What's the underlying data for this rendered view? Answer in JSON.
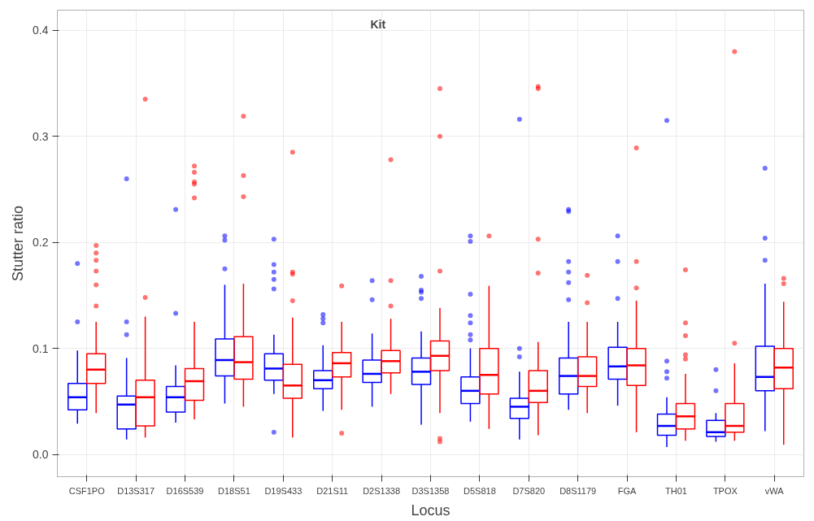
{
  "chart_data": {
    "type": "box",
    "xlabel": "Locus",
    "ylabel": "Stutter ratio",
    "legend_title": "Kit",
    "grid": true,
    "marker": "circle",
    "categories": [
      "CSF1PO",
      "D13S317",
      "D16S539",
      "D18S51",
      "D19S433",
      "D21S11",
      "D2S1338",
      "D3S1358",
      "D5S818",
      "D7S820",
      "D8S1179",
      "FGA",
      "TH01",
      "TPOX",
      "vWA"
    ],
    "ylim": [
      -0.021,
      0.419
    ],
    "yticks": [
      {
        "value": 0,
        "label": "0.0"
      },
      {
        "value": 0.1,
        "label": "0.1"
      },
      {
        "value": 0.2,
        "label": "0.2"
      },
      {
        "value": 0.3,
        "label": "0.3"
      },
      {
        "value": 0.4,
        "label": "0.4"
      }
    ],
    "series": [
      {
        "color": "#0000ff",
        "boxes": [
          {
            "low": 0.029,
            "q1": 0.042,
            "median": 0.054,
            "q3": 0.067,
            "high": 0.098,
            "outliers": [
              0.18,
              0.125
            ]
          },
          {
            "low": 0.014,
            "q1": 0.024,
            "median": 0.047,
            "q3": 0.055,
            "high": 0.091,
            "outliers": [
              0.26,
              0.125,
              0.113
            ]
          },
          {
            "low": 0.03,
            "q1": 0.04,
            "median": 0.054,
            "q3": 0.064,
            "high": 0.084,
            "outliers": [
              0.231,
              0.133
            ]
          },
          {
            "low": 0.048,
            "q1": 0.074,
            "median": 0.089,
            "q3": 0.109,
            "high": 0.16,
            "outliers": [
              0.206,
              0.202,
              0.175
            ]
          },
          {
            "low": 0.057,
            "q1": 0.07,
            "median": 0.081,
            "q3": 0.095,
            "high": 0.113,
            "outliers": [
              0.203,
              0.179,
              0.172,
              0.165,
              0.156,
              0.021
            ]
          },
          {
            "low": 0.041,
            "q1": 0.062,
            "median": 0.07,
            "q3": 0.079,
            "high": 0.103,
            "outliers": [
              0.132,
              0.128,
              0.124
            ]
          },
          {
            "low": 0.045,
            "q1": 0.068,
            "median": 0.076,
            "q3": 0.089,
            "high": 0.114,
            "outliers": [
              0.164,
              0.146
            ]
          },
          {
            "low": 0.028,
            "q1": 0.066,
            "median": 0.078,
            "q3": 0.091,
            "high": 0.116,
            "outliers": [
              0.168,
              0.155,
              0.153,
              0.147
            ]
          },
          {
            "low": 0.031,
            "q1": 0.048,
            "median": 0.06,
            "q3": 0.073,
            "high": 0.1,
            "outliers": [
              0.206,
              0.201,
              0.151,
              0.131,
              0.124,
              0.113,
              0.108
            ]
          },
          {
            "low": 0.014,
            "q1": 0.034,
            "median": 0.045,
            "q3": 0.053,
            "high": 0.078,
            "outliers": [
              0.316,
              0.1,
              0.092
            ]
          },
          {
            "low": 0.042,
            "q1": 0.057,
            "median": 0.074,
            "q3": 0.091,
            "high": 0.125,
            "outliers": [
              0.231,
              0.229,
              0.182,
              0.172,
              0.162,
              0.146
            ]
          },
          {
            "low": 0.046,
            "q1": 0.071,
            "median": 0.083,
            "q3": 0.101,
            "high": 0.125,
            "outliers": [
              0.206,
              0.182,
              0.147
            ]
          },
          {
            "low": 0.007,
            "q1": 0.018,
            "median": 0.027,
            "q3": 0.038,
            "high": 0.054,
            "outliers": [
              0.315,
              0.088,
              0.078,
              0.072
            ]
          },
          {
            "low": 0.012,
            "q1": 0.017,
            "median": 0.021,
            "q3": 0.032,
            "high": 0.039,
            "outliers": [
              0.08,
              0.06
            ]
          },
          {
            "low": 0.022,
            "q1": 0.06,
            "median": 0.073,
            "q3": 0.102,
            "high": 0.161,
            "outliers": [
              0.27,
              0.204,
              0.183
            ]
          }
        ]
      },
      {
        "color": "#ff0000",
        "boxes": [
          {
            "low": 0.039,
            "q1": 0.067,
            "median": 0.08,
            "q3": 0.095,
            "high": 0.125,
            "outliers": [
              0.197,
              0.19,
              0.183,
              0.173,
              0.16,
              0.14
            ]
          },
          {
            "low": 0.016,
            "q1": 0.027,
            "median": 0.054,
            "q3": 0.07,
            "high": 0.13,
            "outliers": [
              0.335,
              0.148
            ]
          },
          {
            "low": 0.033,
            "q1": 0.051,
            "median": 0.069,
            "q3": 0.081,
            "high": 0.125,
            "outliers": [
              0.272,
              0.266,
              0.257,
              0.255,
              0.242
            ]
          },
          {
            "low": 0.045,
            "q1": 0.071,
            "median": 0.087,
            "q3": 0.111,
            "high": 0.161,
            "outliers": [
              0.319,
              0.263,
              0.243
            ]
          },
          {
            "low": 0.016,
            "q1": 0.053,
            "median": 0.065,
            "q3": 0.085,
            "high": 0.129,
            "outliers": [
              0.285,
              0.172,
              0.17,
              0.145
            ]
          },
          {
            "low": 0.042,
            "q1": 0.073,
            "median": 0.086,
            "q3": 0.096,
            "high": 0.125,
            "outliers": [
              0.159,
              0.02
            ]
          },
          {
            "low": 0.057,
            "q1": 0.077,
            "median": 0.088,
            "q3": 0.098,
            "high": 0.128,
            "outliers": [
              0.278,
              0.164,
              0.14
            ]
          },
          {
            "low": 0.039,
            "q1": 0.079,
            "median": 0.093,
            "q3": 0.107,
            "high": 0.138,
            "outliers": [
              0.345,
              0.3,
              0.173,
              0.015,
              0.012
            ]
          },
          {
            "low": 0.024,
            "q1": 0.057,
            "median": 0.075,
            "q3": 0.1,
            "high": 0.159,
            "outliers": [
              0.206
            ]
          },
          {
            "low": 0.018,
            "q1": 0.049,
            "median": 0.06,
            "q3": 0.079,
            "high": 0.106,
            "outliers": [
              0.347,
              0.345,
              0.203,
              0.171
            ]
          },
          {
            "low": 0.039,
            "q1": 0.064,
            "median": 0.074,
            "q3": 0.092,
            "high": 0.125,
            "outliers": [
              0.169,
              0.143
            ]
          },
          {
            "low": 0.021,
            "q1": 0.065,
            "median": 0.084,
            "q3": 0.1,
            "high": 0.145,
            "outliers": [
              0.289,
              0.182,
              0.157
            ]
          },
          {
            "low": 0.013,
            "q1": 0.024,
            "median": 0.036,
            "q3": 0.048,
            "high": 0.076,
            "outliers": [
              0.174,
              0.124,
              0.112,
              0.094,
              0.09
            ]
          },
          {
            "low": 0.013,
            "q1": 0.021,
            "median": 0.027,
            "q3": 0.048,
            "high": 0.086,
            "outliers": [
              0.38,
              0.105
            ]
          },
          {
            "low": 0.009,
            "q1": 0.062,
            "median": 0.082,
            "q3": 0.1,
            "high": 0.144,
            "outliers": [
              0.166,
              0.161
            ]
          }
        ]
      }
    ]
  }
}
